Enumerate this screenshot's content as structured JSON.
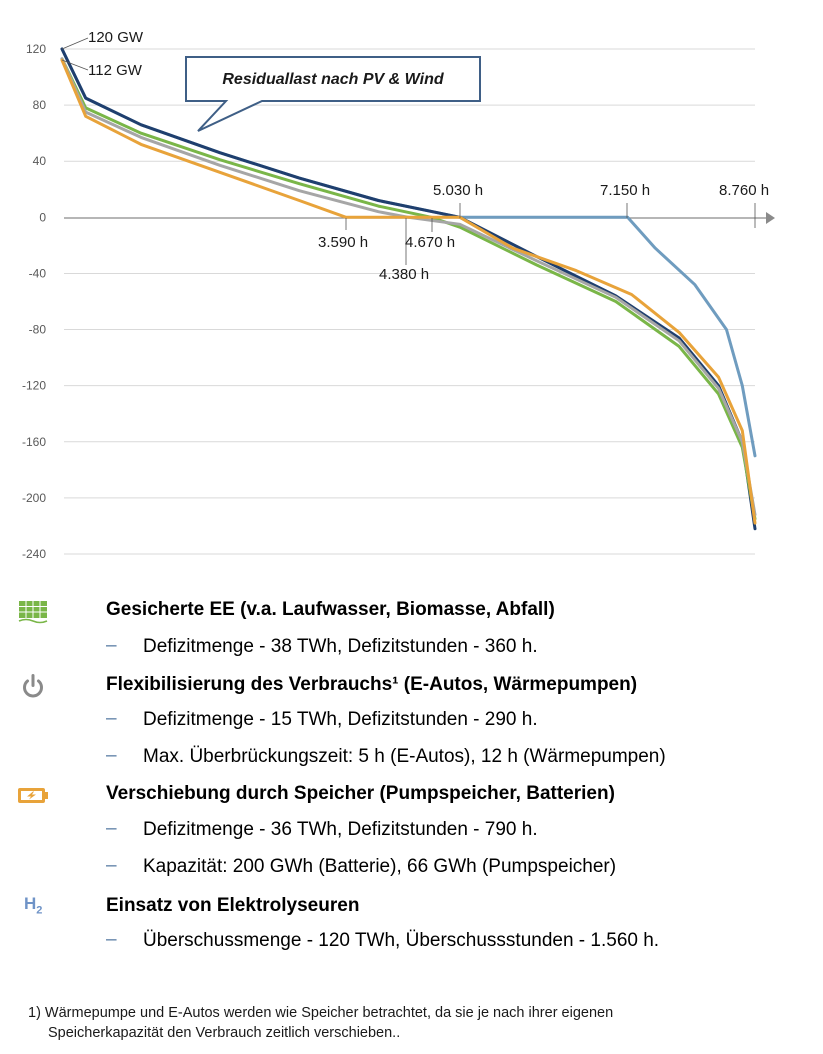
{
  "chart_data": {
    "type": "line",
    "title": "",
    "xlabel": "",
    "ylabel": "",
    "xlim": [
      0,
      8760
    ],
    "ylim": [
      -240,
      120
    ],
    "yticks": [
      "120",
      "80",
      "40",
      "0",
      "-40",
      "-80",
      "-120",
      "-160",
      "-200",
      "-240"
    ],
    "grid": true,
    "legend": "none",
    "callout": "Residuallast nach PV & Wind",
    "annotations": {
      "peak_high": "120 GW",
      "peak_low": "112 GW",
      "x_5030": "5.030 h",
      "x_7150": "7.150 h",
      "x_8760": "8.760 h",
      "x_3590": "3.590 h",
      "x_4670": "4.670 h",
      "x_4380": "4.380 h"
    },
    "series": [
      {
        "color": "#6f9cbf",
        "x": [
          0,
          300,
          1000,
          2000,
          3000,
          4000,
          5030,
          7150,
          7500,
          8000,
          8400,
          8600,
          8760
        ],
        "y": [
          120,
          85,
          66,
          46,
          28,
          12,
          0,
          0,
          -22,
          -48,
          -80,
          -120,
          -170
        ]
      },
      {
        "color": "#1f3f6e",
        "x": [
          0,
          300,
          1000,
          2000,
          3000,
          4000,
          5030,
          6000,
          7000,
          7800,
          8300,
          8600,
          8760
        ],
        "y": [
          120,
          85,
          66,
          46,
          28,
          12,
          0,
          -28,
          -56,
          -86,
          -120,
          -160,
          -222
        ]
      },
      {
        "color": "#7ab648",
        "x": [
          0,
          300,
          1000,
          2000,
          3000,
          4000,
          4670,
          5030,
          6000,
          7000,
          7800,
          8300,
          8600,
          8760
        ],
        "y": [
          113,
          78,
          60,
          41,
          24,
          8,
          0,
          -7,
          -34,
          -60,
          -92,
          -126,
          -164,
          -215
        ]
      },
      {
        "color": "#a6a6a6",
        "x": [
          0,
          300,
          1000,
          2000,
          3000,
          4000,
          4380,
          5030,
          6000,
          7000,
          7800,
          8300,
          8600,
          8760
        ],
        "y": [
          113,
          75,
          57,
          37,
          19,
          4,
          0,
          -5,
          -31,
          -57,
          -88,
          -122,
          -160,
          -212
        ]
      },
      {
        "color": "#e8a33a",
        "x": [
          0,
          300,
          1000,
          2000,
          3000,
          3590,
          5030,
          5700,
          6500,
          7200,
          7800,
          8300,
          8600,
          8760
        ],
        "y": [
          112,
          72,
          52,
          32,
          12,
          0,
          0,
          -22,
          -38,
          -55,
          -82,
          -114,
          -152,
          -218
        ]
      }
    ]
  },
  "legend": {
    "items": [
      {
        "icon": "solar-panel-icon",
        "heading": "Gesicherte EE (v.a. Laufwasser, Biomasse, Abfall)",
        "subs": [
          "Defizitmenge - 38 TWh, Defizitstunden - 360 h."
        ]
      },
      {
        "icon": "power-icon",
        "heading": "Flexibilisierung des Verbrauchs¹ (E-Autos, Wärmepumpen)",
        "subs": [
          "Defizitmenge - 15 TWh, Defizitstunden - 290 h.",
          "Max. Überbrückungszeit: 5 h (E-Autos), 12 h (Wärmepumpen)"
        ]
      },
      {
        "icon": "battery-icon",
        "heading": "Verschiebung durch Speicher (Pumpspeicher, Batterien)",
        "subs": [
          "Defizitmenge - 36 TWh, Defizitstunden - 790 h.",
          "Kapazität: 200 GWh (Batterie), 66 GWh (Pumpspeicher)"
        ]
      },
      {
        "icon": "h2-icon",
        "heading": "Einsatz von Elektrolyseuren",
        "subs": [
          "Überschussmenge - 120 TWh, Überschussstunden - 1.560 h."
        ]
      }
    ],
    "dash": "–",
    "h2_label": "H",
    "h2_sub": "2"
  },
  "footnote": {
    "line1": "1) Wärmepumpe und E-Autos werden wie Speicher betrachtet, da sie je nach ihrer eigenen",
    "line2": "Speicherkapazität den Verbrauch zeitlich verschieben.."
  }
}
